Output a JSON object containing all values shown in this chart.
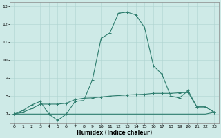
{
  "title": "",
  "xlabel": "Humidex (Indice chaleur)",
  "x_values": [
    0,
    1,
    2,
    3,
    4,
    5,
    6,
    7,
    8,
    9,
    10,
    11,
    12,
    13,
    14,
    15,
    16,
    17,
    18,
    19,
    20,
    21,
    22,
    23
  ],
  "line1_y": [
    7.0,
    7.2,
    7.5,
    7.7,
    7.0,
    6.65,
    7.0,
    7.7,
    7.75,
    8.9,
    11.2,
    11.5,
    12.6,
    12.65,
    12.5,
    11.8,
    9.7,
    9.2,
    8.0,
    7.9,
    8.3,
    7.4,
    7.4,
    7.1
  ],
  "line2_y": [
    7.0,
    7.0,
    7.0,
    7.0,
    7.0,
    7.0,
    7.0,
    7.0,
    7.0,
    7.0,
    7.0,
    7.0,
    7.0,
    7.0,
    7.0,
    7.0,
    7.0,
    7.0,
    7.0,
    7.0,
    7.0,
    7.0,
    7.0,
    7.1
  ],
  "line3_y": [
    7.0,
    7.1,
    7.3,
    7.55,
    7.55,
    7.55,
    7.6,
    7.8,
    7.88,
    7.9,
    7.95,
    8.0,
    8.03,
    8.06,
    8.08,
    8.1,
    8.15,
    8.15,
    8.15,
    8.18,
    8.2,
    7.4,
    7.4,
    7.1
  ],
  "line_color": "#2e7d6e",
  "bg_color": "#ceeae7",
  "grid_color": "#aed4d0",
  "ylim": [
    6.5,
    13.2
  ],
  "yticks": [
    7,
    8,
    9,
    10,
    11,
    12,
    13
  ],
  "xticks": [
    0,
    1,
    2,
    3,
    4,
    5,
    6,
    7,
    8,
    9,
    10,
    11,
    12,
    13,
    14,
    15,
    16,
    17,
    18,
    19,
    20,
    21,
    22,
    23
  ]
}
